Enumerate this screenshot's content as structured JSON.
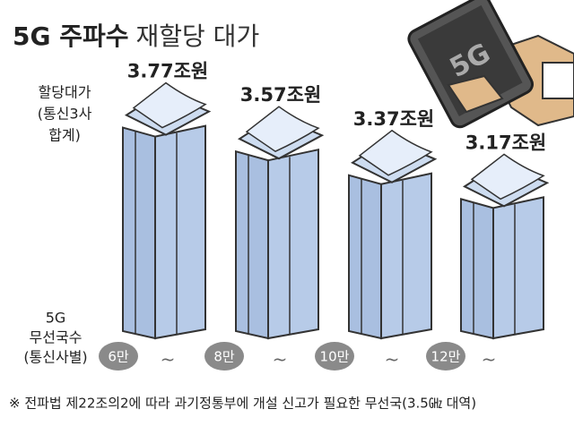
{
  "chart_data": {
    "type": "bar",
    "title": [
      "5G 주파수",
      "재할당 대가"
    ],
    "y_label": [
      "할당대가",
      "(통신3사",
      "합계)"
    ],
    "x_label": [
      "5G",
      "무선국수",
      "(통신사별)"
    ],
    "categories": [
      "6만",
      "8만",
      "10만",
      "12만"
    ],
    "category_suffix": "~",
    "values": [
      3.77,
      3.57,
      3.37,
      3.17
    ],
    "value_labels": [
      "3.77조원",
      "3.57조원",
      "3.37조원",
      "3.17조원"
    ],
    "ylim": [
      2,
      4
    ],
    "color": "#b7cbe8",
    "footnote": "※ 전파법 제22조의2에 따라 과기정통부에 개설 신고가 필요한 무선국(3.5㎓ 대역)"
  }
}
